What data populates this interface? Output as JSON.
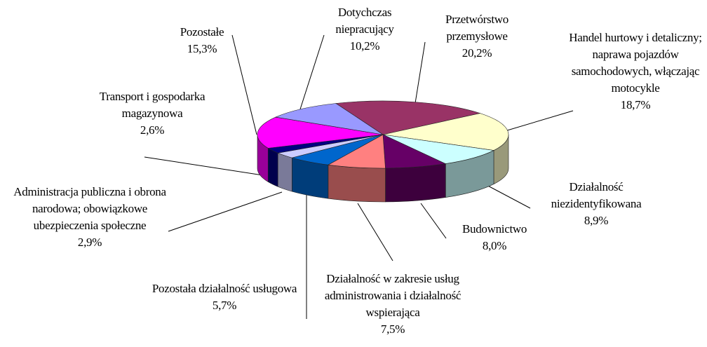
{
  "chart_data": {
    "type": "pie",
    "categories": [
      "Przetwórstwo przemysłowe",
      "Handel hurtowy i detaliczny; naprawa pojazdów samochodowych, włączając motocykle",
      "Działalność niezidentyfikowana",
      "Budownictwo",
      "Działalność w zakresie usług administrowania i działalność wspierająca",
      "Pozostała działalność usługowa",
      "Administracja publiczna i obrona narodowa; obowiązkowe ubezpieczenia społeczne",
      "Transport i gospodarka magazynowa",
      "Pozostałe",
      "Dotychczas niepracujący"
    ],
    "values": [
      20.2,
      18.7,
      8.9,
      8.0,
      7.5,
      5.7,
      2.9,
      2.6,
      15.3,
      10.2
    ],
    "value_labels": [
      "20,2%",
      "18,7%",
      "8,9%",
      "8,0%",
      "7,5%",
      "5,7%",
      "2,9%",
      "2,6%",
      "15,3%",
      "10,2%"
    ],
    "colors": [
      "#993366",
      "#FFFFCC",
      "#CCFFFF",
      "#660066",
      "#FF8080",
      "#0066CC",
      "#CCCCFF",
      "#000080",
      "#FF00FF",
      "#9999FF"
    ]
  }
}
